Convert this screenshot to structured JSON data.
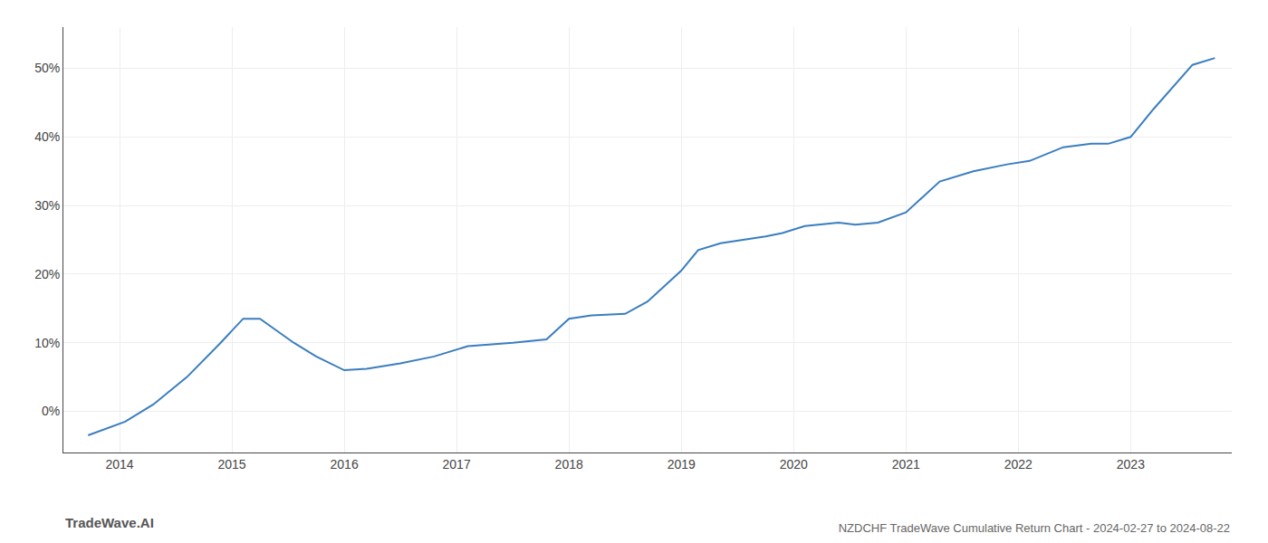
{
  "chart_data": {
    "type": "line",
    "title": "NZDCHF TradeWave Cumulative Return Chart - 2024-02-27 to 2024-08-22",
    "annotations": [
      {
        "text": "TradeWave.AI"
      }
    ],
    "x": [
      2013.72,
      2014.05,
      2014.3,
      2014.6,
      2014.9,
      2015.1,
      2015.25,
      2015.55,
      2015.75,
      2016.0,
      2016.2,
      2016.5,
      2016.8,
      2017.1,
      2017.5,
      2017.8,
      2018.0,
      2018.2,
      2018.5,
      2018.7,
      2019.0,
      2019.15,
      2019.35,
      2019.55,
      2019.75,
      2019.9,
      2020.1,
      2020.4,
      2020.55,
      2020.75,
      2021.0,
      2021.3,
      2021.6,
      2021.9,
      2022.1,
      2022.4,
      2022.65,
      2022.8,
      2023.0,
      2023.2,
      2023.55,
      2023.75
    ],
    "values": [
      -3.5,
      -1.5,
      1.0,
      5.0,
      10.0,
      13.5,
      13.5,
      10.0,
      8.0,
      6.0,
      6.2,
      7.0,
      8.0,
      9.5,
      10.0,
      10.5,
      13.5,
      14.0,
      14.2,
      16.0,
      20.5,
      23.5,
      24.5,
      25.0,
      25.5,
      26.0,
      27.0,
      27.5,
      27.2,
      27.5,
      29.0,
      33.5,
      35.0,
      36.0,
      36.5,
      38.5,
      39.0,
      39.0,
      40.0,
      44.0,
      50.5,
      51.5
    ],
    "color": "#3a7ebf",
    "xlim": [
      2013.5,
      2023.9
    ],
    "ylim": [
      -6,
      56
    ],
    "xticks": [
      2014,
      2015,
      2016,
      2017,
      2018,
      2019,
      2020,
      2021,
      2022,
      2023
    ],
    "yticks": [
      {
        "value": 0,
        "label": "0%"
      },
      {
        "value": 10,
        "label": "10%"
      },
      {
        "value": 20,
        "label": "20%"
      },
      {
        "value": 30,
        "label": "30%"
      },
      {
        "value": 40,
        "label": "40%"
      },
      {
        "value": 50,
        "label": "50%"
      }
    ],
    "grid": true
  }
}
